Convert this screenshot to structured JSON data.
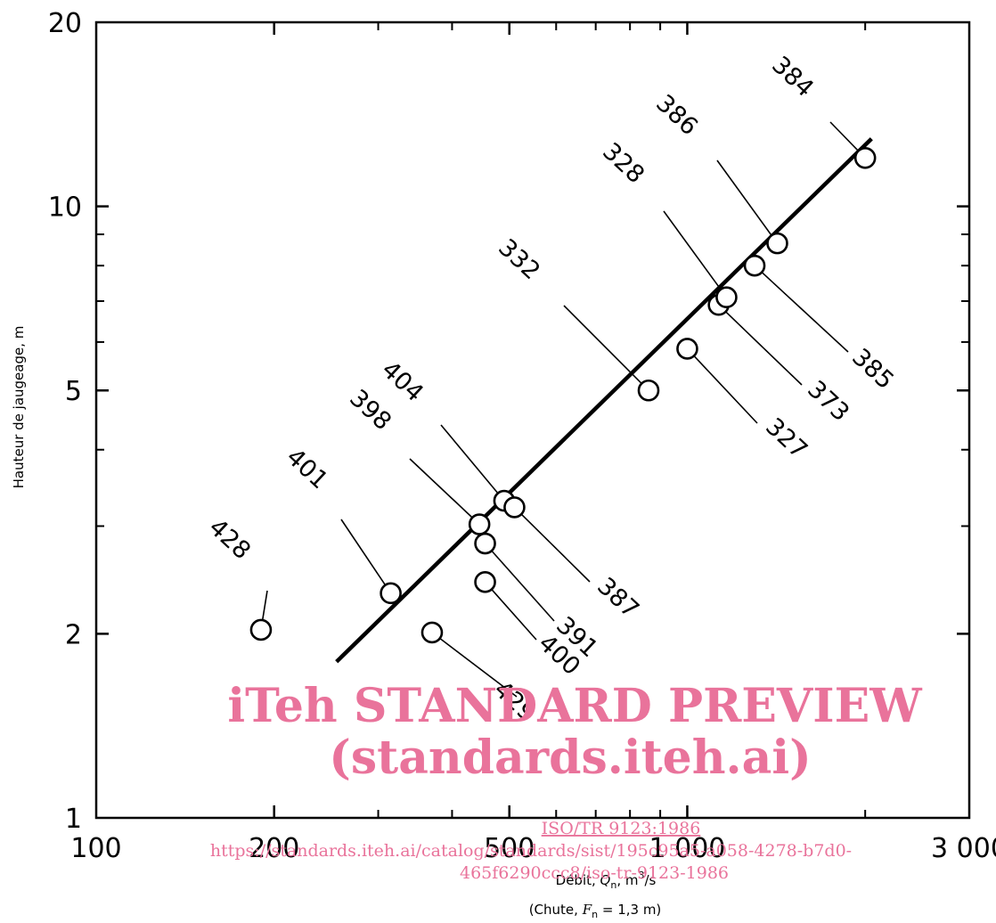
{
  "chart_data": {
    "type": "scatter",
    "title": "",
    "xlabel": "Débit, Qn, m3/s",
    "xlabel_parts": {
      "pre": "Débit, ",
      "var": "Q",
      "sub": "n",
      "post": ", m",
      "sup": "3",
      "end": "/s"
    },
    "xlabel_note": "(Chute, Fn = 1,3 m)",
    "xlabel_note_parts": {
      "pre": "(Chute, ",
      "var": "F",
      "sub": "n",
      "post": " = 1,3 m)"
    },
    "ylabel": "Hauteur de jaugeage, m",
    "x_scale": "log",
    "y_scale": "log",
    "xlim": [
      100,
      3000
    ],
    "ylim": [
      1,
      20
    ],
    "x_ticks": [
      {
        "value": 100,
        "label": "100"
      },
      {
        "value": 200,
        "label": "200"
      },
      {
        "value": 500,
        "label": "500"
      },
      {
        "value": 1000,
        "label": "1 000"
      },
      {
        "value": 3000,
        "label": "3 000"
      }
    ],
    "y_ticks": [
      {
        "value": 1,
        "label": "1"
      },
      {
        "value": 2,
        "label": "2"
      },
      {
        "value": 5,
        "label": "5"
      },
      {
        "value": 10,
        "label": "10"
      },
      {
        "value": 20,
        "label": "20"
      }
    ],
    "grid": false,
    "points": [
      {
        "label": "428",
        "x": 190,
        "y": 2.03
      },
      {
        "label": "429",
        "x": 370,
        "y": 2.01
      },
      {
        "label": "401",
        "x": 315,
        "y": 2.33
      },
      {
        "label": "400",
        "x": 455,
        "y": 2.43
      },
      {
        "label": "391",
        "x": 455,
        "y": 2.81
      },
      {
        "label": "398",
        "x": 445,
        "y": 3.02
      },
      {
        "label": "404",
        "x": 490,
        "y": 3.3
      },
      {
        "label": "387",
        "x": 510,
        "y": 3.22
      },
      {
        "label": "332",
        "x": 860,
        "y": 5.0
      },
      {
        "label": "327",
        "x": 1000,
        "y": 5.85
      },
      {
        "label": "373",
        "x": 1130,
        "y": 6.9
      },
      {
        "label": "328",
        "x": 1165,
        "y": 7.1
      },
      {
        "label": "385",
        "x": 1300,
        "y": 8.0
      },
      {
        "label": "386",
        "x": 1420,
        "y": 8.7
      },
      {
        "label": "384",
        "x": 2000,
        "y": 12.0
      }
    ],
    "fit_line": {
      "x": [
        255,
        2050
      ],
      "y": [
        1.8,
        12.9
      ]
    }
  },
  "watermark": {
    "title": "iTeh STANDARD PREVIEW",
    "subtitle": "(standards.iteh.ai)",
    "doc_ref": "ISO/TR 9123:1986",
    "url_line1": "https://standards.iteh.ai/catalog/standards/sist/195c95a5-a058-4278-b7d0-",
    "url_line2": "465f6290ccc8/iso-tr-9123-1986"
  },
  "colors": {
    "ink": "#000000",
    "watermark": "#e9739b"
  }
}
